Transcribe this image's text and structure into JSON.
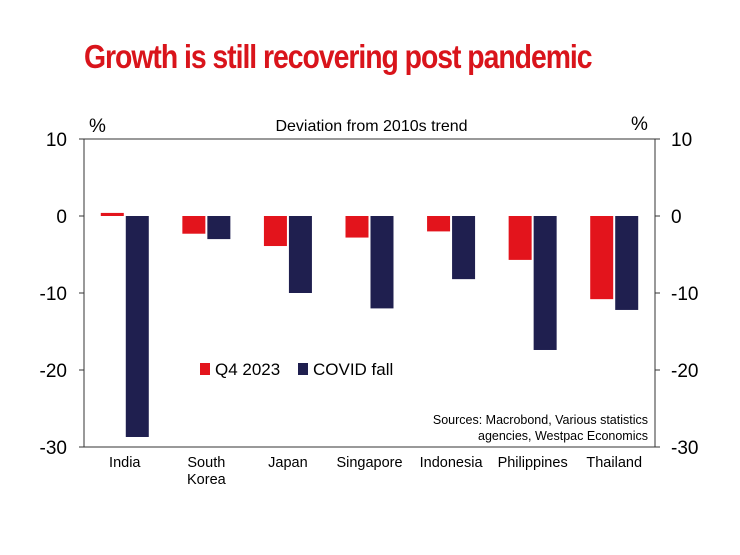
{
  "title": "Growth is still recovering post pandemic",
  "colors": {
    "title": "#d9141b",
    "q4": "#e3141c",
    "covid": "#1f1f4f"
  },
  "chart_data": {
    "type": "bar",
    "subtitle": "Deviation from 2010s trend",
    "unit_left": "%",
    "unit_right": "%",
    "categories": [
      [
        "India"
      ],
      [
        "South",
        "Korea"
      ],
      [
        "Japan"
      ],
      [
        "Singapore"
      ],
      [
        "Indonesia"
      ],
      [
        "Philippines"
      ],
      [
        "Thailand"
      ]
    ],
    "series": [
      {
        "name": "Q4 2023",
        "color": "#e3141c",
        "values": [
          0.4,
          -2.3,
          -3.9,
          -2.8,
          -2.0,
          -5.7,
          -10.8
        ]
      },
      {
        "name": "COVID fall",
        "color": "#1f1f4f",
        "values": [
          -28.7,
          -3.0,
          -10.0,
          -12.0,
          -8.2,
          -17.4,
          -12.2
        ]
      }
    ],
    "ylim": [
      -30,
      10
    ],
    "yticks": [
      10,
      0,
      -10,
      -20,
      -30
    ],
    "ytick_labels": [
      "10",
      "0",
      "-10",
      "-20",
      "-30"
    ],
    "legend_position": "middle-left",
    "source_lines": [
      "Sources: Macrobond, Various statistics",
      "agencies, Westpac Economics"
    ],
    "grid": false
  }
}
